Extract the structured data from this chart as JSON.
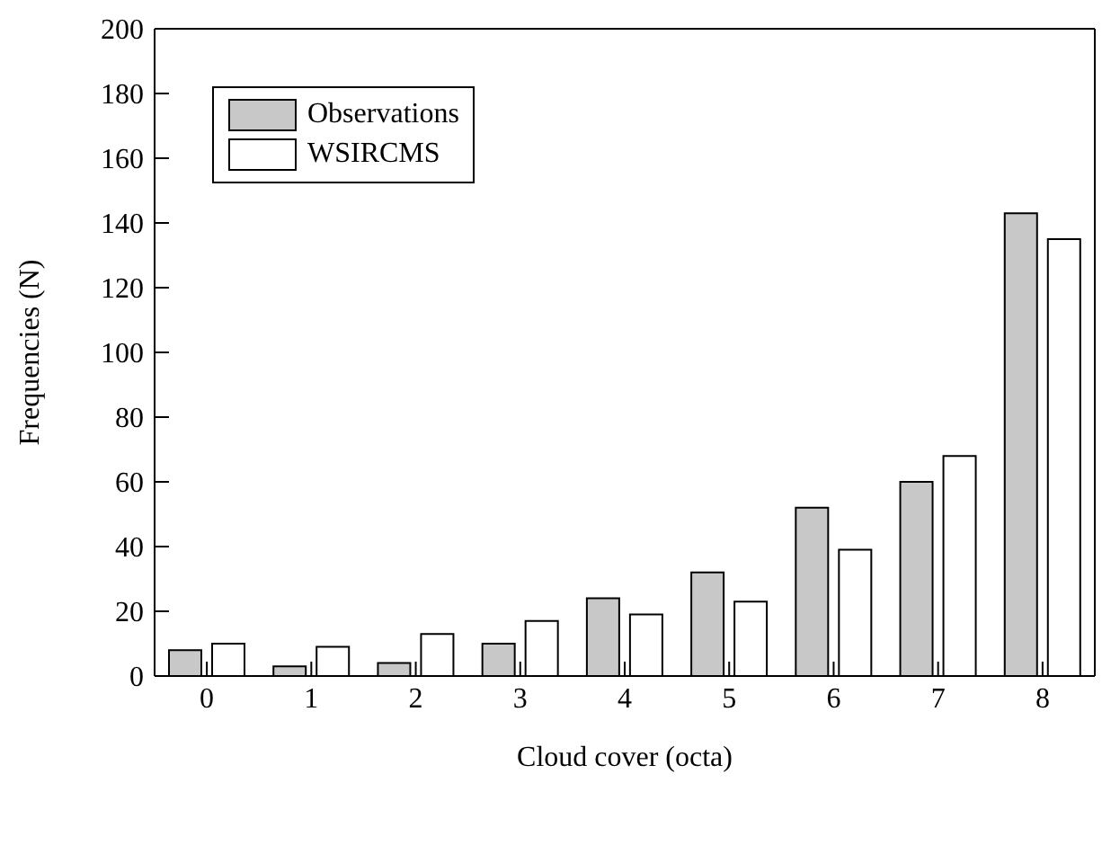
{
  "chart_data": {
    "type": "bar",
    "xlabel": "Cloud cover (octa)",
    "ylabel": "Frequencies (N)",
    "categories": [
      "0",
      "1",
      "2",
      "3",
      "4",
      "5",
      "6",
      "7",
      "8"
    ],
    "series": [
      {
        "name": "Observations",
        "color": "#c8c8c8",
        "values": [
          8,
          3,
          4,
          10,
          24,
          32,
          52,
          60,
          143
        ]
      },
      {
        "name": "WSIRCMS",
        "color": "#ffffff",
        "values": [
          10,
          9,
          13,
          17,
          19,
          23,
          39,
          68,
          135
        ]
      }
    ],
    "ylim": [
      0,
      200
    ],
    "yticks": [
      0,
      20,
      40,
      60,
      80,
      100,
      120,
      140,
      160,
      180,
      200
    ],
    "grid": false,
    "legend": "top left"
  }
}
